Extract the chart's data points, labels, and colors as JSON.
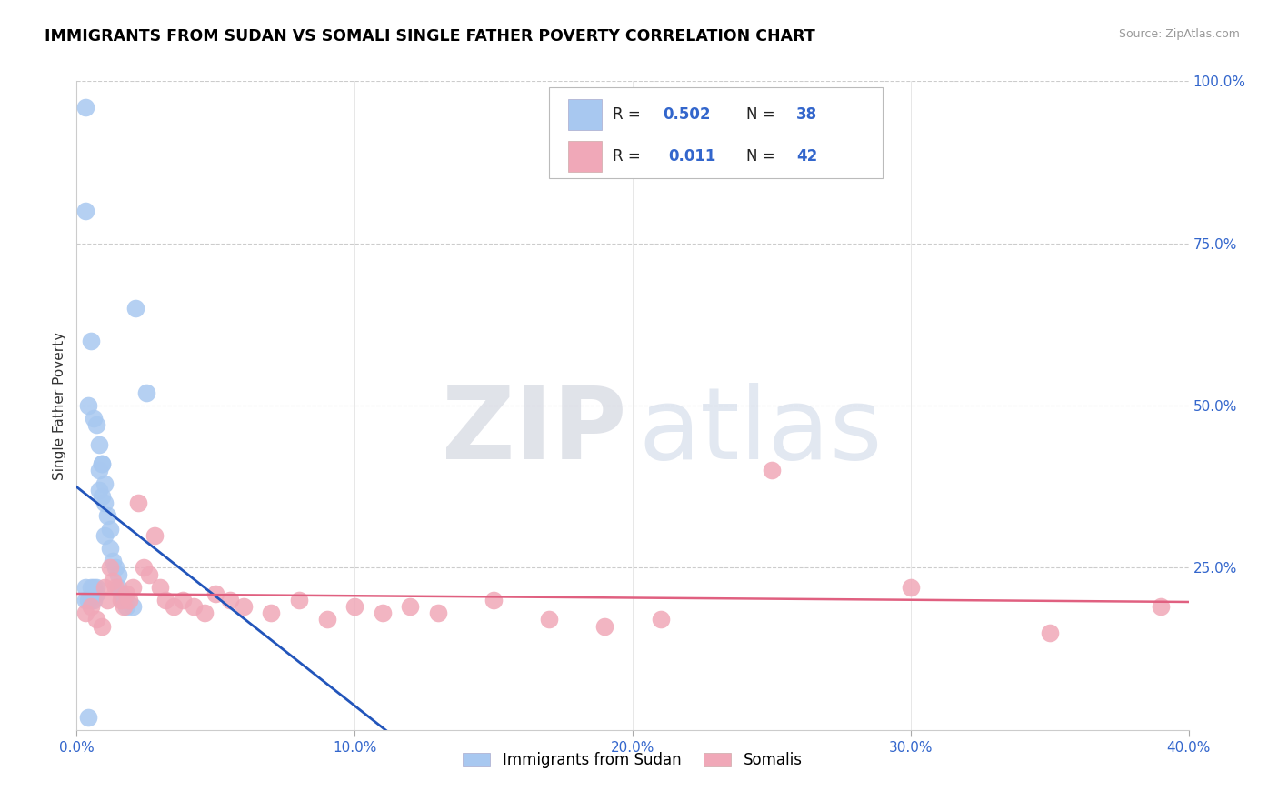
{
  "title": "IMMIGRANTS FROM SUDAN VS SOMALI SINGLE FATHER POVERTY CORRELATION CHART",
  "source": "Source: ZipAtlas.com",
  "ylabel": "Single Father Poverty",
  "color_sudan": "#a8c8f0",
  "color_somali": "#f0a8b8",
  "line_color_sudan": "#2255bb",
  "line_color_somali": "#e06080",
  "sudan_x": [
    0.003,
    0.003,
    0.004,
    0.004,
    0.005,
    0.005,
    0.006,
    0.006,
    0.007,
    0.007,
    0.008,
    0.008,
    0.009,
    0.009,
    0.01,
    0.01,
    0.011,
    0.012,
    0.013,
    0.014,
    0.015,
    0.015,
    0.016,
    0.017,
    0.018,
    0.02,
    0.021,
    0.003,
    0.004,
    0.005,
    0.006,
    0.007,
    0.008,
    0.009,
    0.01,
    0.012,
    0.025,
    0.003
  ],
  "sudan_y": [
    0.96,
    0.22,
    0.2,
    0.02,
    0.22,
    0.2,
    0.22,
    0.2,
    0.22,
    0.21,
    0.4,
    0.37,
    0.41,
    0.36,
    0.35,
    0.3,
    0.33,
    0.28,
    0.26,
    0.25,
    0.24,
    0.22,
    0.21,
    0.2,
    0.19,
    0.19,
    0.65,
    0.8,
    0.5,
    0.6,
    0.48,
    0.47,
    0.44,
    0.41,
    0.38,
    0.31,
    0.52,
    0.2
  ],
  "somali_x": [
    0.003,
    0.005,
    0.007,
    0.009,
    0.01,
    0.011,
    0.012,
    0.013,
    0.014,
    0.016,
    0.017,
    0.018,
    0.019,
    0.02,
    0.022,
    0.024,
    0.026,
    0.028,
    0.03,
    0.032,
    0.035,
    0.038,
    0.042,
    0.046,
    0.05,
    0.055,
    0.06,
    0.07,
    0.08,
    0.09,
    0.1,
    0.11,
    0.12,
    0.13,
    0.15,
    0.17,
    0.19,
    0.21,
    0.25,
    0.3,
    0.35,
    0.39
  ],
  "somali_y": [
    0.18,
    0.19,
    0.17,
    0.16,
    0.22,
    0.2,
    0.25,
    0.23,
    0.22,
    0.2,
    0.19,
    0.21,
    0.2,
    0.22,
    0.35,
    0.25,
    0.24,
    0.3,
    0.22,
    0.2,
    0.19,
    0.2,
    0.19,
    0.18,
    0.21,
    0.2,
    0.19,
    0.18,
    0.2,
    0.17,
    0.19,
    0.18,
    0.19,
    0.18,
    0.2,
    0.17,
    0.16,
    0.17,
    0.4,
    0.22,
    0.15,
    0.19
  ],
  "xlim": [
    0.0,
    0.4
  ],
  "ylim": [
    0.0,
    1.0
  ],
  "xticks": [
    0.0,
    0.1,
    0.2,
    0.3,
    0.4
  ],
  "yticks_right": [
    0.0,
    0.25,
    0.5,
    0.75,
    1.0
  ],
  "ytick_labels_right": [
    "",
    "25.0%",
    "50.0%",
    "75.0%",
    "100.0%"
  ],
  "xtick_labels": [
    "0.0%",
    "10.0%",
    "20.0%",
    "30.0%",
    "40.0%"
  ],
  "legend_r1": "0.502",
  "legend_n1": "38",
  "legend_r2": "0.011",
  "legend_n2": "42",
  "watermark_zip": "ZIP",
  "watermark_atlas": "atlas"
}
